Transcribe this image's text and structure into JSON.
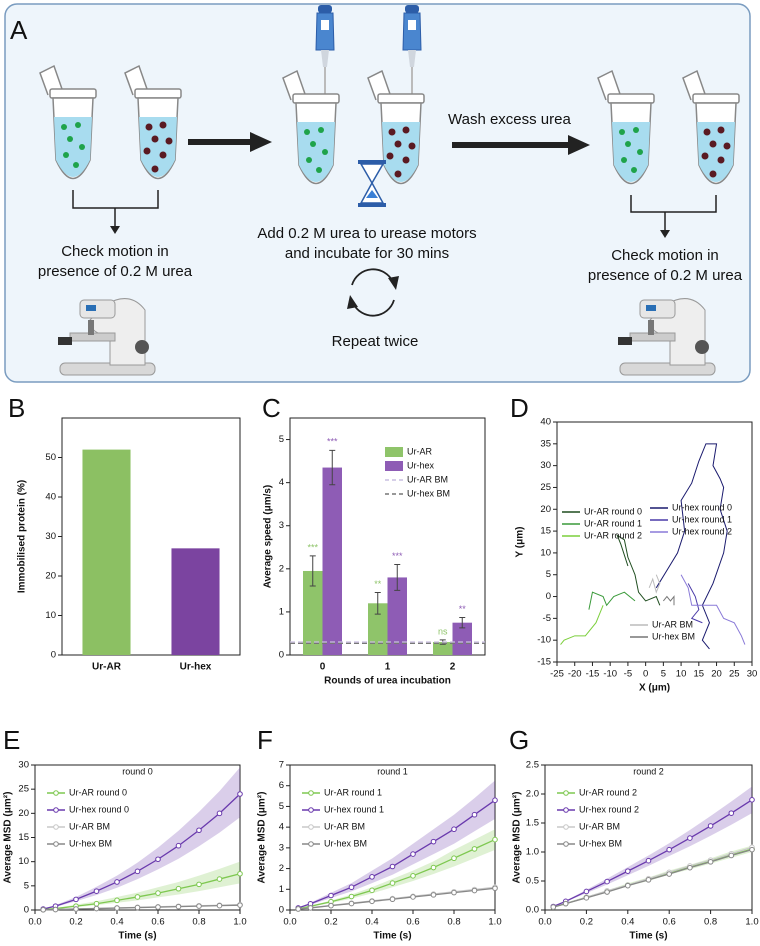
{
  "figure_a": {
    "label": "A",
    "left_text": [
      "Check motion in",
      "presence of 0.2 M urea"
    ],
    "middle_text": [
      "Add 0.2 M urea to urease motors",
      "and incubate for 30 mins"
    ],
    "wash": "Wash excess urea",
    "repeat": "Repeat twice",
    "right_text": [
      "Check motion in",
      "presence of 0.2 M urea"
    ]
  },
  "chart_data": [
    {
      "type": "bar",
      "panel": "B",
      "y_label": "Immobilised protein (%)",
      "categories": [
        "Ur-AR",
        "Ur-hex"
      ],
      "values": [
        52,
        27
      ],
      "colors": [
        "#8cc063",
        "#7b44a0"
      ],
      "ylim": [
        0,
        60
      ],
      "yticks": [
        0,
        10,
        20,
        30,
        40,
        50
      ]
    },
    {
      "type": "bar",
      "panel": "C",
      "y_label": "Average speed (μm/s)",
      "x_label": "Rounds of urea incubation",
      "categories": [
        "0",
        "1",
        "2"
      ],
      "series": [
        {
          "name": "Ur-AR",
          "color": "#8fc46a",
          "values": [
            1.95,
            1.2,
            0.3
          ],
          "errors": [
            0.35,
            0.25,
            0.05
          ],
          "labels": [
            "***",
            "**",
            "ns"
          ]
        },
        {
          "name": "Ur-hex",
          "color": "#8e5cb5",
          "values": [
            4.35,
            1.8,
            0.75
          ],
          "errors": [
            0.4,
            0.3,
            0.12
          ],
          "labels": [
            "***",
            "***",
            "**"
          ]
        }
      ],
      "reference_lines": [
        {
          "name": "Ur-AR BM",
          "value": 0.3,
          "color": "#c9bfe0"
        },
        {
          "name": "Ur-hex BM",
          "value": 0.27,
          "color": "#777777"
        }
      ],
      "ylim": [
        0,
        5.5
      ],
      "yticks": [
        0,
        1,
        2,
        3,
        4,
        5
      ]
    },
    {
      "type": "line",
      "panel": "D",
      "x_label": "X (μm)",
      "y_label": "Y (μm)",
      "xlim": [
        -25,
        30
      ],
      "ylim": [
        -15,
        40
      ],
      "xticks": [
        -25,
        -20,
        -15,
        -10,
        -5,
        0,
        5,
        10,
        15,
        20,
        25,
        30
      ],
      "yticks": [
        -15,
        -10,
        -5,
        0,
        5,
        10,
        15,
        20,
        25,
        30,
        35,
        40
      ],
      "series": [
        {
          "name": "Ur-AR round 0",
          "color": "#1f4d1f",
          "x": [
            -5,
            -7,
            -8,
            -6,
            -5,
            -3,
            -2,
            0,
            3,
            4
          ],
          "values": [
            7,
            12,
            14,
            13,
            9,
            5,
            1,
            -1,
            0,
            -2
          ]
        },
        {
          "name": "Ur-AR round 1",
          "color": "#3a9a3a",
          "x": [
            -3,
            -6,
            -9,
            -11,
            -12,
            -15,
            -16
          ],
          "values": [
            -1,
            1,
            0,
            -2,
            0,
            1,
            -3
          ]
        },
        {
          "name": "Ur-AR round 2",
          "color": "#7ccf3c",
          "x": [
            -12,
            -14,
            -17,
            -20,
            -23,
            -24
          ],
          "values": [
            -2,
            -6,
            -9,
            -9,
            -10,
            -11
          ]
        },
        {
          "name": "Ur-hex round 0",
          "color": "#1a1a6e",
          "x": [
            3,
            6,
            9,
            11,
            10,
            13,
            15,
            17,
            20,
            19,
            21,
            22,
            21,
            23,
            22,
            19,
            16,
            18,
            16,
            18
          ],
          "values": [
            2,
            6,
            10,
            15,
            22,
            26,
            31,
            35,
            35,
            30,
            27,
            25,
            20,
            15,
            10,
            3,
            -2,
            -6,
            -10,
            -12
          ]
        },
        {
          "name": "Ur-hex round 1",
          "color": "#4a3aa8",
          "x": [
            12,
            14,
            15,
            13,
            16
          ],
          "values": [
            3,
            0,
            -3,
            -5,
            -6
          ]
        },
        {
          "name": "Ur-hex round 2",
          "color": "#8a7ad8",
          "x": [
            10,
            12,
            13,
            20,
            22,
            25,
            27,
            28
          ],
          "values": [
            5,
            2,
            -2,
            -2,
            -5,
            -6,
            -9,
            -11
          ]
        },
        {
          "name": "Ur-AR BM",
          "color": "#bbbbbb",
          "x": [
            1,
            2,
            3,
            4,
            3
          ],
          "values": [
            2,
            4,
            1,
            3,
            5
          ]
        },
        {
          "name": "Ur-hex BM",
          "color": "#777777",
          "x": [
            5,
            6,
            7,
            8,
            8
          ],
          "values": [
            -1,
            0,
            -1,
            0,
            -2
          ]
        }
      ]
    },
    {
      "type": "line",
      "panel": "E",
      "title": "round 0",
      "x_label": "Time (s)",
      "y_label": "Average MSD (μm²)",
      "markers": true,
      "x": [
        0.04,
        0.1,
        0.2,
        0.3,
        0.4,
        0.5,
        0.6,
        0.7,
        0.8,
        0.9,
        1.0
      ],
      "xlim": [
        0,
        1
      ],
      "xticks": [
        {
          "value": 0,
          "label": "0.0"
        },
        {
          "value": 0.2,
          "label": "0.2"
        },
        {
          "value": 0.4,
          "label": "0.4"
        },
        {
          "value": 0.6,
          "label": "0.6"
        },
        {
          "value": 0.8,
          "label": "0.8"
        },
        {
          "value": 1,
          "label": "1.0"
        }
      ],
      "ylim": [
        0,
        30
      ],
      "yticks": [
        0,
        5,
        10,
        15,
        20,
        25,
        30
      ],
      "series": [
        {
          "name": "Ur-AR round 0",
          "color": "#7ec850",
          "values": [
            0.1,
            0.3,
            0.8,
            1.3,
            2,
            2.7,
            3.5,
            4.4,
            5.3,
            6.4,
            7.5
          ],
          "lower": [
            0.08,
            0.22,
            0.6,
            1,
            1.5,
            2,
            2.6,
            3.2,
            3.9,
            4.7,
            5.5
          ],
          "upper": [
            0.13,
            0.4,
            1.1,
            1.8,
            2.7,
            3.6,
            4.7,
            5.8,
            7.1,
            8.5,
            10
          ]
        },
        {
          "name": "Ur-hex round 0",
          "color": "#6a3aad",
          "values": [
            0.2,
            0.8,
            2.2,
            3.9,
            5.8,
            8,
            10.5,
            13.3,
            16.5,
            20,
            24
          ],
          "lower": [
            0.16,
            0.64,
            1.8,
            3.1,
            4.6,
            6.4,
            8.4,
            10.6,
            13.2,
            16,
            19.2
          ],
          "upper": [
            0.25,
            1,
            2.7,
            4.8,
            7.1,
            9.8,
            12.9,
            16.4,
            20.3,
            24.6,
            29.5
          ]
        },
        {
          "name": "Ur-AR BM",
          "color": "#c8c8c8",
          "values": [
            0.05,
            0.11,
            0.22,
            0.33,
            0.44,
            0.55,
            0.66,
            0.77,
            0.88,
            0.99,
            1.1
          ]
        },
        {
          "name": "Ur-hex BM",
          "color": "#888888",
          "values": [
            0.04,
            0.1,
            0.2,
            0.3,
            0.4,
            0.5,
            0.6,
            0.7,
            0.8,
            0.9,
            1.0
          ]
        }
      ]
    },
    {
      "type": "line",
      "panel": "F",
      "title": "round 1",
      "x_label": "Time (s)",
      "y_label": "Average MSD (μm²)",
      "markers": true,
      "x": [
        0.04,
        0.1,
        0.2,
        0.3,
        0.4,
        0.5,
        0.6,
        0.7,
        0.8,
        0.9,
        1.0
      ],
      "xlim": [
        0,
        1
      ],
      "xticks": [
        {
          "value": 0,
          "label": "0.0"
        },
        {
          "value": 0.2,
          "label": "0.2"
        },
        {
          "value": 0.4,
          "label": "0.4"
        },
        {
          "value": 0.6,
          "label": "0.6"
        },
        {
          "value": 0.8,
          "label": "0.8"
        },
        {
          "value": 1,
          "label": "1.0"
        }
      ],
      "ylim": [
        0,
        7
      ],
      "yticks": [
        0,
        1,
        2,
        3,
        4,
        5,
        6,
        7
      ],
      "series": [
        {
          "name": "Ur-AR round 1",
          "color": "#7ec850",
          "values": [
            0.06,
            0.18,
            0.4,
            0.65,
            0.95,
            1.3,
            1.65,
            2.05,
            2.5,
            2.95,
            3.4
          ],
          "lower": [
            0.05,
            0.15,
            0.34,
            0.55,
            0.8,
            1.1,
            1.4,
            1.74,
            2.1,
            2.5,
            2.9
          ],
          "upper": [
            0.07,
            0.21,
            0.46,
            0.75,
            1.1,
            1.5,
            1.9,
            2.35,
            2.9,
            3.4,
            3.9
          ]
        },
        {
          "name": "Ur-hex round 1",
          "color": "#6a3aad",
          "values": [
            0.1,
            0.3,
            0.7,
            1.1,
            1.6,
            2.1,
            2.7,
            3.3,
            3.9,
            4.6,
            5.3
          ],
          "lower": [
            0.08,
            0.25,
            0.58,
            0.9,
            1.3,
            1.7,
            2.2,
            2.7,
            3.2,
            3.8,
            4.4
          ],
          "upper": [
            0.12,
            0.35,
            0.83,
            1.3,
            1.9,
            2.5,
            3.2,
            3.9,
            4.6,
            5.4,
            6.25
          ]
        },
        {
          "name": "Ur-AR BM",
          "color": "#c8c8c8",
          "values": [
            0.05,
            0.11,
            0.22,
            0.33,
            0.44,
            0.55,
            0.66,
            0.77,
            0.88,
            0.99,
            1.1
          ]
        },
        {
          "name": "Ur-hex BM",
          "color": "#888888",
          "values": [
            0.05,
            0.1,
            0.21,
            0.31,
            0.42,
            0.52,
            0.63,
            0.73,
            0.84,
            0.94,
            1.05
          ]
        }
      ]
    },
    {
      "type": "line",
      "panel": "G",
      "title": "round 2",
      "x_label": "Time (s)",
      "y_label": "Average MSD (μm²)",
      "markers": true,
      "x": [
        0.04,
        0.1,
        0.2,
        0.3,
        0.4,
        0.5,
        0.6,
        0.7,
        0.8,
        0.9,
        1.0
      ],
      "xlim": [
        0,
        1
      ],
      "xticks": [
        {
          "value": 0,
          "label": "0.0"
        },
        {
          "value": 0.2,
          "label": "0.2"
        },
        {
          "value": 0.4,
          "label": "0.4"
        },
        {
          "value": 0.6,
          "label": "0.6"
        },
        {
          "value": 0.8,
          "label": "0.8"
        },
        {
          "value": 1,
          "label": "1.0"
        }
      ],
      "ylim": [
        0,
        2.5
      ],
      "yticks": [
        {
          "value": 0,
          "label": "0.0"
        },
        {
          "value": 0.5,
          "label": "0.5"
        },
        {
          "value": 1,
          "label": "1.0"
        },
        {
          "value": 1.5,
          "label": "1.5"
        },
        {
          "value": 2,
          "label": "2.0"
        },
        {
          "value": 2.5,
          "label": "2.5"
        }
      ],
      "series": [
        {
          "name": "Ur-AR round 2",
          "color": "#7ec850",
          "values": [
            0.05,
            0.11,
            0.22,
            0.32,
            0.43,
            0.53,
            0.64,
            0.74,
            0.84,
            0.95,
            1.05
          ],
          "lower": [
            0.047,
            0.1,
            0.21,
            0.3,
            0.41,
            0.5,
            0.61,
            0.7,
            0.8,
            0.9,
            1.0
          ],
          "upper": [
            0.053,
            0.12,
            0.23,
            0.34,
            0.46,
            0.56,
            0.68,
            0.78,
            0.89,
            1.01,
            1.11
          ]
        },
        {
          "name": "Ur-hex round 2",
          "color": "#6a3aad",
          "values": [
            0.06,
            0.15,
            0.32,
            0.49,
            0.67,
            0.85,
            1.04,
            1.24,
            1.45,
            1.67,
            1.9
          ],
          "lower": [
            0.055,
            0.14,
            0.29,
            0.44,
            0.6,
            0.76,
            0.93,
            1.1,
            1.28,
            1.47,
            1.67
          ],
          "upper": [
            0.065,
            0.16,
            0.35,
            0.54,
            0.74,
            0.94,
            1.15,
            1.38,
            1.62,
            1.87,
            2.13
          ]
        },
        {
          "name": "Ur-AR BM",
          "color": "#c8c8c8",
          "values": [
            0.05,
            0.11,
            0.22,
            0.33,
            0.43,
            0.54,
            0.65,
            0.76,
            0.86,
            0.97,
            1.08
          ]
        },
        {
          "name": "Ur-hex BM",
          "color": "#888888",
          "values": [
            0.05,
            0.11,
            0.21,
            0.31,
            0.42,
            0.52,
            0.62,
            0.73,
            0.83,
            0.94,
            1.04
          ]
        }
      ]
    }
  ]
}
